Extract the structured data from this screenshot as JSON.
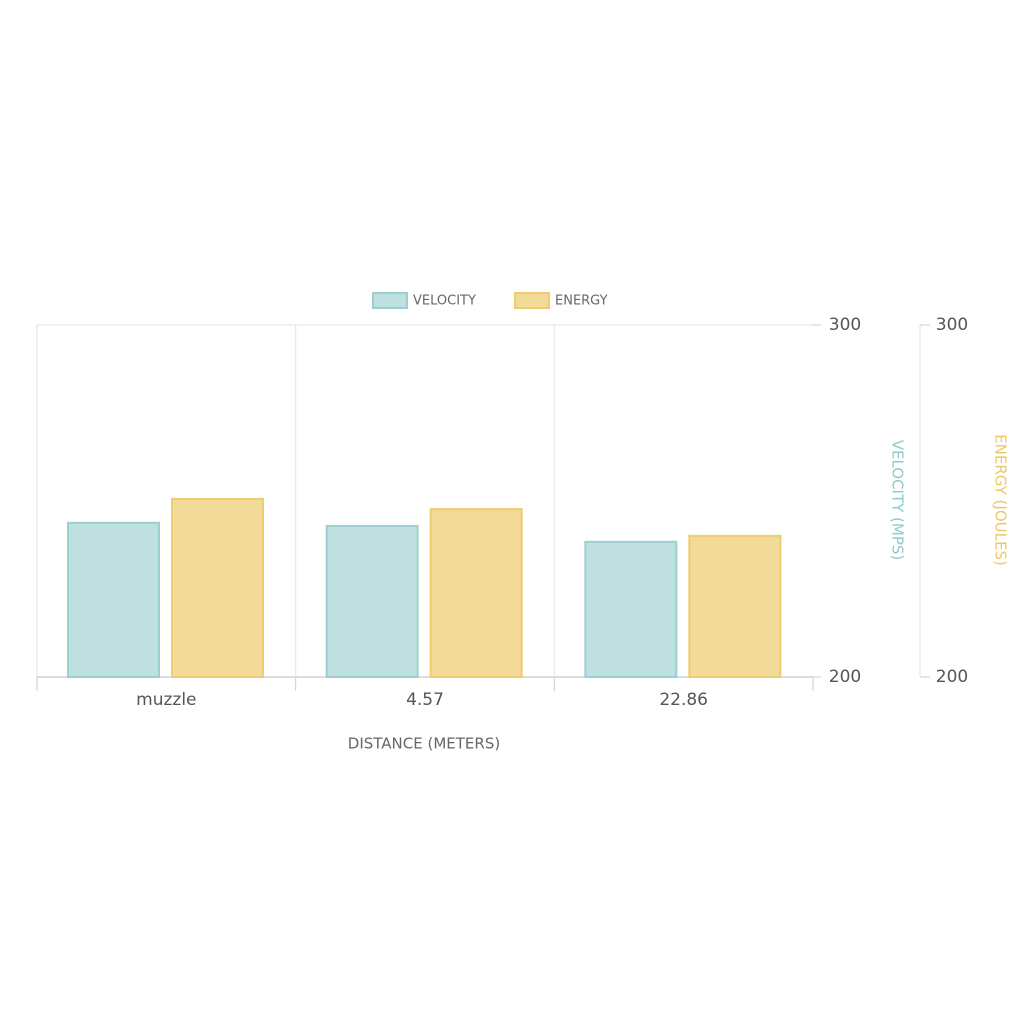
{
  "chart_data": {
    "type": "bar",
    "categories": [
      "muzzle",
      "4.57",
      "22.86"
    ],
    "x_label": "DISTANCE (METERS)",
    "y_label": "VELOCITY (MPS)",
    "y2_label": "ENERGY (JOULES)",
    "series": [
      {
        "name": "VELOCITY",
        "color": "#bfdfe0",
        "border_color": "#9ccfd0",
        "values": [
          243.8,
          242.9,
          238.4
        ]
      },
      {
        "name": "ENERGY",
        "color": "#f2da98",
        "border_color": "#efcd6e",
        "values": [
          250.6,
          247.7,
          240.1
        ],
        "axis": "y2"
      }
    ],
    "ylim": [
      200,
      300
    ],
    "yticks": [
      200,
      300
    ],
    "y2lim": [
      200,
      300
    ],
    "y2ticks": [
      200,
      300
    ],
    "y_label_color": "#8ec9cb",
    "y2_label_color": "#ecc76a",
    "grid": true,
    "legend": "top"
  }
}
